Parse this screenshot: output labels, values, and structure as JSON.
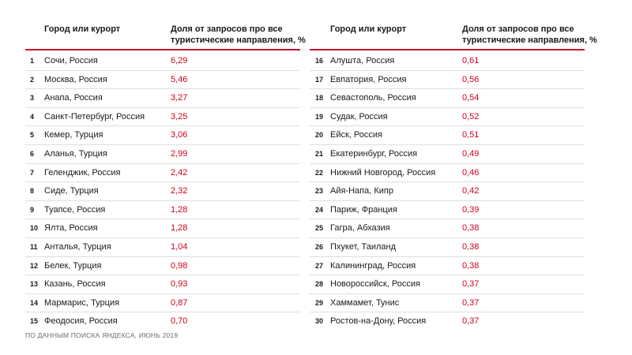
{
  "headers": {
    "city": "Город или курорт",
    "share_line1": "Доля от запросов про все",
    "share_line2": "туристические направления, %"
  },
  "left_rows": [
    {
      "num": "1",
      "city": "Сочи, Россия",
      "share": "6,29"
    },
    {
      "num": "2",
      "city": "Москва, Россия",
      "share": "5,46"
    },
    {
      "num": "3",
      "city": "Анапа, Россия",
      "share": "3,27"
    },
    {
      "num": "4",
      "city": "Санкт-Петербург, Россия",
      "share": "3,25"
    },
    {
      "num": "5",
      "city": "Кемер, Турция",
      "share": "3,06"
    },
    {
      "num": "6",
      "city": "Аланья, Турция",
      "share": "2,99"
    },
    {
      "num": "7",
      "city": "Геленджик, Россия",
      "share": "2,42"
    },
    {
      "num": "8",
      "city": "Сиде, Турция",
      "share": "2,32"
    },
    {
      "num": "9",
      "city": "Туапсе, Россия",
      "share": "1,28"
    },
    {
      "num": "10",
      "city": "Ялта, Россия",
      "share": "1,28"
    },
    {
      "num": "11",
      "city": "Анталья, Турция",
      "share": "1,04"
    },
    {
      "num": "12",
      "city": "Белек, Турция",
      "share": "0,98"
    },
    {
      "num": "13",
      "city": "Казань, Россия",
      "share": "0,93"
    },
    {
      "num": "14",
      "city": "Мармарис, Турция",
      "share": "0,87"
    },
    {
      "num": "15",
      "city": "Феодосия, Россия",
      "share": "0,70"
    }
  ],
  "right_rows": [
    {
      "num": "16",
      "city": "Алушта, Россия",
      "share": "0,61"
    },
    {
      "num": "17",
      "city": "Евпатория, Россия",
      "share": "0,56"
    },
    {
      "num": "18",
      "city": "Севастополь, Россия",
      "share": "0,54"
    },
    {
      "num": "19",
      "city": "Судак, Россия",
      "share": "0,52"
    },
    {
      "num": "20",
      "city": "Ейск, Россия",
      "share": "0,51"
    },
    {
      "num": "21",
      "city": "Екатеринбург, Россия",
      "share": "0,49"
    },
    {
      "num": "22",
      "city": "Нижний Новгород, Россия",
      "share": "0,46"
    },
    {
      "num": "23",
      "city": "Айя-Напа, Кипр",
      "share": "0,42"
    },
    {
      "num": "24",
      "city": "Париж, Франция",
      "share": "0,39"
    },
    {
      "num": "25",
      "city": "Гагра, Абхазия",
      "share": "0,38"
    },
    {
      "num": "26",
      "city": "Пхукет, Таиланд",
      "share": "0,38"
    },
    {
      "num": "27",
      "city": "Калининград, Россия",
      "share": "0,38"
    },
    {
      "num": "28",
      "city": "Новороссийск, Россия",
      "share": "0,37"
    },
    {
      "num": "29",
      "city": "Хаммамет, Тунис",
      "share": "0,37"
    },
    {
      "num": "30",
      "city": "Ростов-на-Дону, Россия",
      "share": "0,37"
    }
  ],
  "footer": "ПО ДАННЫМ ПОИСКА ЯНДЕКСА, ИЮНЬ 2019",
  "colors": {
    "accent": "#d0021b",
    "rule": "#c8102e"
  }
}
